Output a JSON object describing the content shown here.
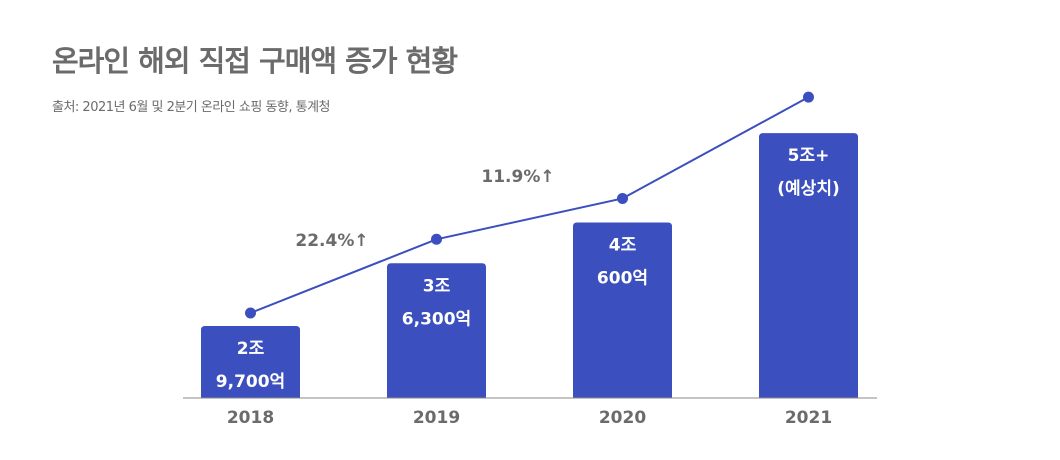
{
  "title": "온라인 해외 직접 구매액 증가 현황",
  "source": "출처: 2021년 6월 및 2분기 온라인 쇼핑 동향, 통계청",
  "colors": {
    "bar": "#3b4fbe",
    "line": "#3b4fbe",
    "text": "#6b6b6b",
    "axis": "#888888"
  },
  "chart_data": {
    "type": "bar",
    "unit": "억",
    "categories": [
      "2018",
      "2019",
      "2020",
      "2021"
    ],
    "values": [
      29700,
      36300,
      40600,
      50000
    ],
    "bar_labels": [
      [
        "2조",
        "9,700억"
      ],
      [
        "3조",
        "6,300억"
      ],
      [
        "4조",
        "600억"
      ],
      [
        "5조+",
        "(예상치)"
      ]
    ],
    "overlay_line": true,
    "growth_labels": [
      "22.4%↑",
      "11.9%↑"
    ],
    "grid": false
  }
}
